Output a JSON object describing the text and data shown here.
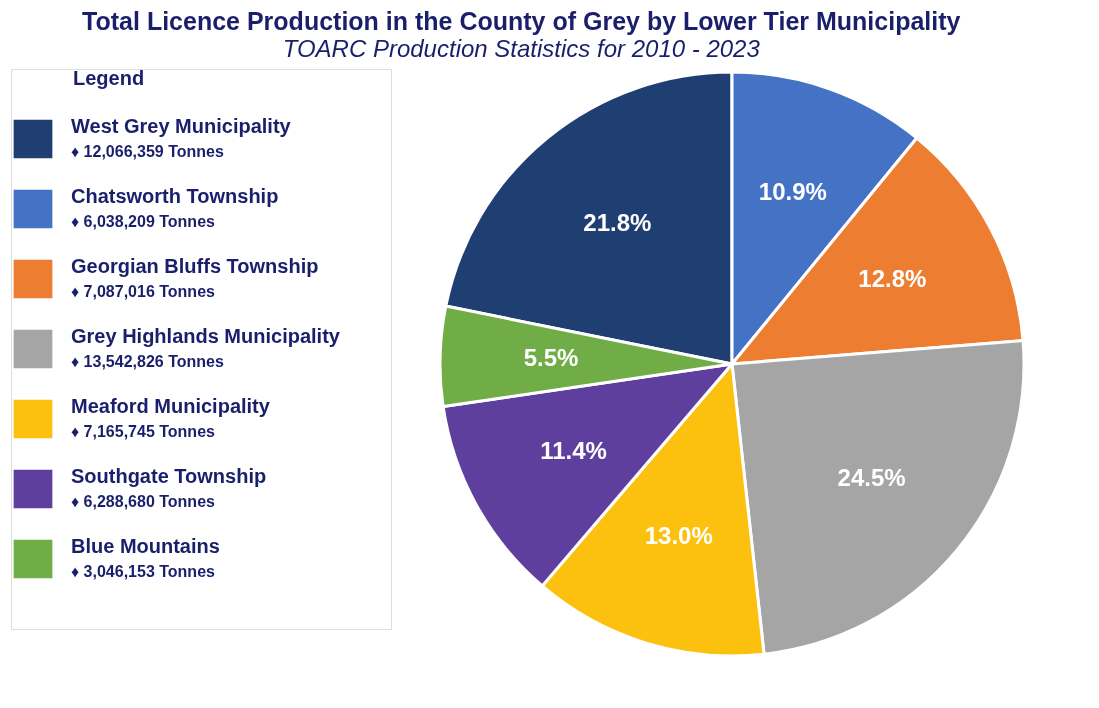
{
  "chart_data": {
    "type": "pie",
    "title": "Total Licence Production in the County of Grey by Lower Tier Municipality",
    "subtitle": "TOARC Production Statistics for 2010 - 2023",
    "legend_title": "Legend",
    "legend": "left",
    "categories": [
      "West Grey Municipality",
      "Chatsworth Township",
      "Georgian Bluffs Township",
      "Grey Highlands Municipality",
      "Meaford Municipality",
      "Southgate Township",
      "Blue Mountains"
    ],
    "values": [
      21.8,
      10.9,
      12.8,
      24.5,
      13.0,
      11.4,
      5.5
    ],
    "value_labels": [
      "21.8%",
      "10.9%",
      "12.8%",
      "24.5%",
      "13.0%",
      "11.4%",
      "5.5%"
    ],
    "colors": [
      "#1f3f73",
      "#4472c4",
      "#ed7d31",
      "#a5a5a5",
      "#fcc10e",
      "#5f3f9e",
      "#70ad47"
    ],
    "annotations": [
      "♦  12,066,359 Tonnes",
      "♦  6,038,209 Tonnes",
      "♦  7,087,016 Tonnes",
      "♦  13,542,826 Tonnes",
      "♦  7,165,745 Tonnes",
      "♦  6,288,680 Tonnes",
      "♦  3,046,153 Tonnes"
    ]
  }
}
